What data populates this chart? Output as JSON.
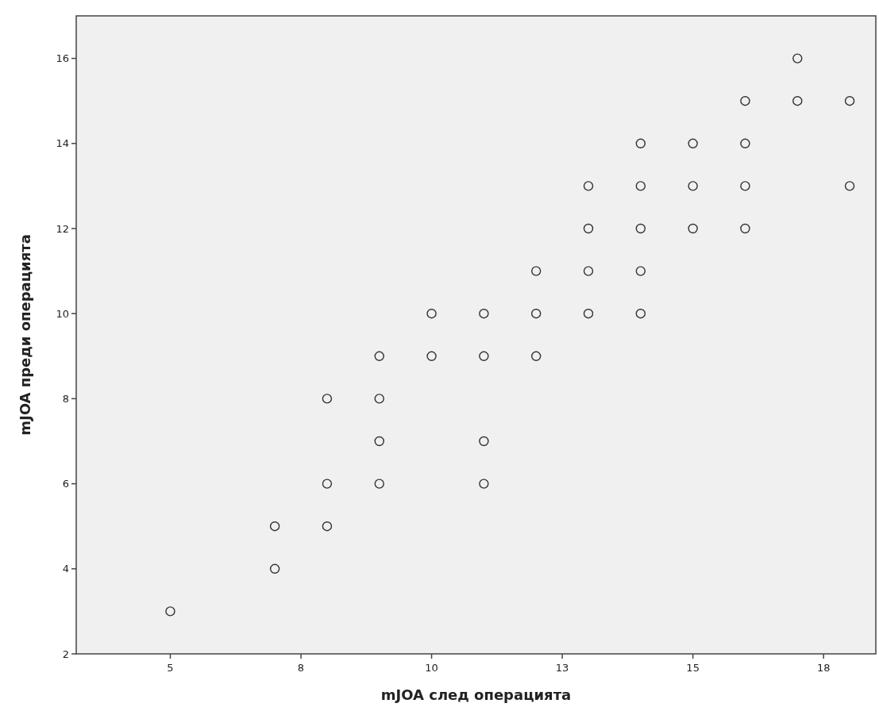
{
  "chart_data": {
    "type": "scatter",
    "xlabel": "mJOA след операцията",
    "ylabel": "mJOA преди операцията",
    "x": [
      5,
      7,
      7,
      8,
      8,
      8,
      9,
      9,
      9,
      9,
      10,
      10,
      11,
      11,
      11,
      11,
      12,
      12,
      12,
      13,
      13,
      13,
      13,
      14,
      14,
      14,
      14,
      14,
      15,
      15,
      15,
      16,
      16,
      16,
      16,
      17,
      17,
      18,
      18
    ],
    "values": [
      3,
      5,
      4,
      8,
      6,
      5,
      9,
      8,
      7,
      6,
      10,
      9,
      10,
      9,
      7,
      6,
      11,
      10,
      9,
      13,
      12,
      11,
      10,
      14,
      13,
      12,
      11,
      10,
      14,
      13,
      12,
      15,
      14,
      13,
      12,
      16,
      15,
      15,
      13
    ],
    "color": "#333333",
    "marker": "circle",
    "grid": false,
    "xlim": [
      3.2,
      18.5
    ],
    "ylim": [
      2,
      17
    ],
    "xticks": [
      {
        "value": 5,
        "label": "5"
      },
      {
        "value": 7.5,
        "label": "8"
      },
      {
        "value": 10,
        "label": "10"
      },
      {
        "value": 12.5,
        "label": "13"
      },
      {
        "value": 15,
        "label": "15"
      },
      {
        "value": 17.5,
        "label": "18"
      }
    ],
    "yticks": [
      2,
      4,
      6,
      8,
      10,
      12,
      14,
      16
    ]
  }
}
